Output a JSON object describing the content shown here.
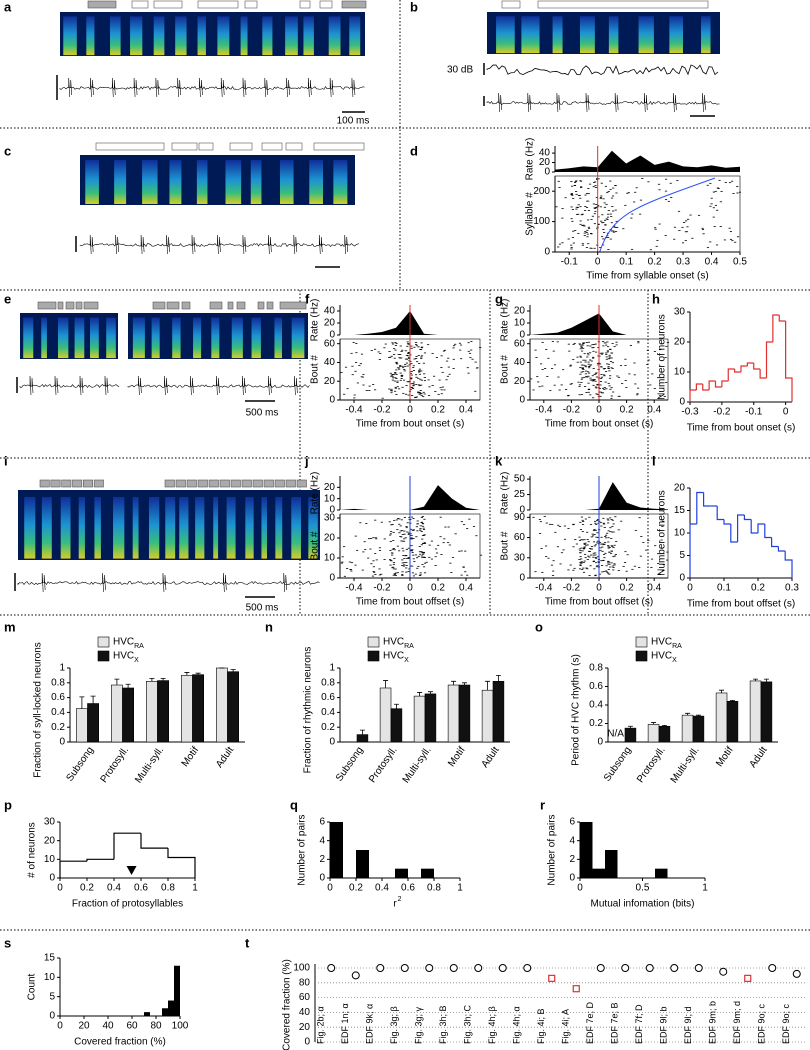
{
  "chart_data": [
    {
      "type": "image",
      "label": "a",
      "annotations": [
        "100 ms"
      ]
    },
    {
      "type": "image",
      "label": "b",
      "annotations": [
        "30 dB"
      ]
    },
    {
      "type": "image",
      "label": "c"
    },
    {
      "type": "raster",
      "label": "d",
      "xlabel": "Time from syllable onset (s)",
      "rate_label": "Rate (Hz)",
      "raster_label": "Syllable #",
      "xlim": [
        -0.15,
        0.5
      ],
      "xticks": [
        -0.1,
        0,
        0.1,
        0.2,
        0.3,
        0.4,
        0.5
      ],
      "rate_ylim": [
        0,
        55
      ],
      "rate_yticks": [
        0,
        20,
        40
      ],
      "raster_ylim": [
        0,
        250
      ],
      "raster_yticks": [
        0,
        100,
        200
      ],
      "rate_x": [
        -0.15,
        -0.1,
        -0.05,
        0,
        0.05,
        0.1,
        0.15,
        0.2,
        0.25,
        0.3,
        0.35,
        0.4,
        0.45,
        0.5
      ],
      "rate": [
        5,
        8,
        12,
        10,
        45,
        18,
        35,
        15,
        22,
        12,
        10,
        14,
        9,
        11
      ],
      "marker_color": "#e03030"
    },
    {
      "type": "image",
      "label": "e",
      "annotations": [
        "500 ms"
      ]
    },
    {
      "type": "raster",
      "label": "f",
      "xlabel": "Time from bout onset (s)",
      "rate_label": "Rate (Hz)",
      "raster_label": "Bout #",
      "xlim": [
        -0.5,
        0.5
      ],
      "xticks": [
        -0.4,
        -0.2,
        0,
        0.2,
        0.4
      ],
      "rate_ylim": [
        0,
        50
      ],
      "rate_yticks": [
        0,
        20,
        40
      ],
      "raster_ylim": [
        0,
        65
      ],
      "raster_yticks": [
        0,
        20,
        40,
        60
      ],
      "rate_x": [
        -0.5,
        -0.4,
        -0.3,
        -0.2,
        -0.1,
        0,
        0.1,
        0.2,
        0.3,
        0.4,
        0.5
      ],
      "rate": [
        0,
        0,
        2,
        5,
        12,
        40,
        2,
        0,
        0,
        0,
        0
      ],
      "marker_color": "#e03030"
    },
    {
      "type": "raster",
      "label": "g",
      "xlabel": "Time from bout onset (s)",
      "rate_label": "Rate (Hz)",
      "raster_label": "Bout #",
      "xlim": [
        -0.5,
        0.5
      ],
      "xticks": [
        -0.4,
        -0.2,
        0,
        0.2,
        0.4
      ],
      "rate_ylim": [
        0,
        25
      ],
      "rate_yticks": [
        0,
        10,
        20
      ],
      "raster_ylim": [
        0,
        65
      ],
      "raster_yticks": [
        0,
        20,
        40,
        60
      ],
      "rate_x": [
        -0.5,
        -0.4,
        -0.3,
        -0.2,
        -0.1,
        0,
        0.1,
        0.2,
        0.3,
        0.4,
        0.5
      ],
      "rate": [
        0,
        1,
        2,
        6,
        12,
        18,
        3,
        0,
        0,
        0,
        0
      ],
      "marker_color": "#e03030"
    },
    {
      "type": "histogram",
      "label": "h",
      "style": "step",
      "color": "#e03030",
      "xlabel": "Time from bout onset (s)",
      "ylabel": "Number of neurons",
      "bins": [
        -0.3,
        -0.28,
        -0.26,
        -0.24,
        -0.22,
        -0.2,
        -0.18,
        -0.16,
        -0.14,
        -0.12,
        -0.1,
        -0.08,
        -0.06,
        -0.04,
        -0.02,
        0,
        0.02
      ],
      "counts": [
        4,
        6,
        4,
        7,
        5,
        7,
        11,
        10,
        12,
        13,
        11,
        8,
        20,
        29,
        27,
        8
      ],
      "xlim": [
        -0.3,
        0.02
      ],
      "xticks": [
        -0.3,
        -0.2,
        -0.1,
        0
      ],
      "ylim": [
        0,
        30
      ],
      "yticks": [
        0,
        10,
        20,
        30
      ]
    },
    {
      "type": "image",
      "label": "i",
      "annotations": [
        "500 ms"
      ]
    },
    {
      "type": "raster",
      "label": "j",
      "xlabel": "Time from bout offset (s)",
      "rate_label": "Rate (Hz)",
      "raster_label": "Bout #",
      "xlim": [
        -0.5,
        0.5
      ],
      "xticks": [
        -0.4,
        -0.2,
        0,
        0.2,
        0.4
      ],
      "rate_ylim": [
        0,
        30
      ],
      "rate_yticks": [
        0,
        10,
        20
      ],
      "raster_ylim": [
        0,
        32
      ],
      "raster_yticks": [
        0,
        10,
        20,
        30
      ],
      "rate_x": [
        -0.5,
        -0.4,
        -0.3,
        -0.2,
        -0.1,
        0,
        0.1,
        0.2,
        0.3,
        0.4,
        0.5
      ],
      "rate": [
        0,
        1,
        0,
        0,
        0,
        0,
        3,
        22,
        10,
        2,
        0
      ],
      "marker_color": "#2040e0"
    },
    {
      "type": "raster",
      "label": "k",
      "xlabel": "Time from bout offset (s)",
      "rate_label": "Rate (Hz)",
      "raster_label": "Bout #",
      "xlim": [
        -0.5,
        0.5
      ],
      "xticks": [
        -0.4,
        -0.2,
        0,
        0.2,
        0.4
      ],
      "rate_ylim": [
        0,
        55
      ],
      "rate_yticks": [
        0,
        25,
        50
      ],
      "raster_ylim": [
        0,
        95
      ],
      "raster_yticks": [
        0,
        30,
        60,
        90
      ],
      "rate_x": [
        -0.5,
        -0.4,
        -0.3,
        -0.2,
        -0.1,
        0,
        0.1,
        0.2,
        0.3,
        0.4,
        0.5
      ],
      "rate": [
        0,
        0,
        0,
        0,
        0,
        2,
        45,
        12,
        4,
        2,
        1
      ],
      "marker_color": "#2040e0"
    },
    {
      "type": "histogram",
      "label": "l",
      "style": "step",
      "color": "#2040e0",
      "xlabel": "Time from bout offset (s)",
      "ylabel": "Number of neurons",
      "bins": [
        0,
        0.02,
        0.04,
        0.06,
        0.08,
        0.1,
        0.12,
        0.14,
        0.16,
        0.18,
        0.2,
        0.22,
        0.24,
        0.26,
        0.28,
        0.3
      ],
      "counts": [
        12,
        19,
        16,
        16,
        13,
        12,
        8,
        14,
        13,
        10,
        12,
        9,
        7,
        6,
        4
      ],
      "xlim": [
        0,
        0.3
      ],
      "xticks": [
        0,
        0.1,
        0.2,
        0.3
      ],
      "ylim": [
        0,
        20
      ],
      "yticks": [
        0,
        5,
        10,
        15,
        20
      ]
    },
    {
      "type": "bar",
      "label": "m",
      "ylabel": "Fraction of syll-locked neurons",
      "categories": [
        "Subsong",
        "Protosyll.",
        "Multi-syll.",
        "Motif",
        "Adult"
      ],
      "series": [
        {
          "name": "HVC",
          "sub": "RA",
          "color": "#e4e4e4",
          "values": [
            0.45,
            0.77,
            0.82,
            0.9,
            1.0
          ],
          "errors": [
            0.16,
            0.08,
            0.04,
            0.04,
            0
          ]
        },
        {
          "name": "HVC",
          "sub": "X",
          "color": "#111111",
          "values": [
            0.52,
            0.73,
            0.83,
            0.91,
            0.95
          ],
          "errors": [
            0.1,
            0.05,
            0.03,
            0.02,
            0.03
          ]
        }
      ],
      "ylim": [
        0,
        1
      ],
      "yticks": [
        0,
        0.2,
        0.4,
        0.6,
        0.8,
        1
      ]
    },
    {
      "type": "bar",
      "label": "n",
      "ylabel": "Fraction of rhythmic neurons",
      "categories": [
        "Subsong",
        "Protosyll.",
        "Multi-syll.",
        "Motif",
        "Adult"
      ],
      "series": [
        {
          "name": "HVC",
          "sub": "RA",
          "color": "#e4e4e4",
          "values": [
            0,
            0.73,
            0.62,
            0.77,
            0.7
          ],
          "errors": [
            0,
            0.1,
            0.05,
            0.05,
            0.12
          ]
        },
        {
          "name": "HVC",
          "sub": "X",
          "color": "#111111",
          "values": [
            0.1,
            0.45,
            0.65,
            0.77,
            0.82
          ],
          "errors": [
            0.06,
            0.06,
            0.03,
            0.03,
            0.08
          ]
        }
      ],
      "ylim": [
        0,
        1
      ],
      "yticks": [
        0,
        0.2,
        0.4,
        0.6,
        0.8,
        1
      ]
    },
    {
      "type": "bar",
      "label": "o",
      "ylabel": "Period of HVC rhythm (s)",
      "missing_label": "N/A",
      "categories": [
        "Subsong",
        "Protosyll.",
        "Multi-syll.",
        "Motif",
        "Adult"
      ],
      "series": [
        {
          "name": "HVC",
          "sub": "RA",
          "color": "#e4e4e4",
          "values": [
            null,
            0.19,
            0.29,
            0.53,
            0.66
          ],
          "errors": [
            null,
            0.02,
            0.02,
            0.03,
            0.02
          ]
        },
        {
          "name": "HVC",
          "sub": "X",
          "color": "#111111",
          "values": [
            0.15,
            0.17,
            0.28,
            0.44,
            0.65
          ],
          "errors": [
            0.02,
            0.01,
            0.01,
            0.01,
            0.03
          ]
        }
      ],
      "ylim": [
        0,
        0.8
      ],
      "yticks": [
        0,
        0.2,
        0.4,
        0.6,
        0.8
      ]
    },
    {
      "type": "histogram",
      "label": "p",
      "style": "step",
      "color": "#000000",
      "xlabel": "Fraction of protosyllables",
      "ylabel": "# of neurons",
      "bins": [
        0,
        0.2,
        0.4,
        0.6,
        0.8,
        1
      ],
      "counts": [
        9,
        10,
        24,
        16,
        11
      ],
      "marker": 0.53,
      "xlim": [
        0,
        1
      ],
      "xticks": [
        0,
        0.2,
        0.4,
        0.6,
        0.8,
        1
      ],
      "ylim": [
        0,
        30
      ],
      "yticks": [
        0,
        10,
        20,
        30
      ]
    },
    {
      "type": "histogram",
      "label": "q",
      "style": "filled",
      "color": "#000000",
      "xlabel": "r",
      "xlabel_sup": "2",
      "ylabel": "Number of pairs",
      "bins": [
        0,
        0.1,
        0.2,
        0.3,
        0.4,
        0.5,
        0.6,
        0.7,
        0.8
      ],
      "counts": [
        6,
        0,
        3,
        0,
        0,
        1,
        0,
        1
      ],
      "xlim": [
        0,
        1
      ],
      "xticks": [
        0,
        0.2,
        0.4,
        0.6,
        0.8,
        1
      ],
      "ylim": [
        0,
        6
      ],
      "yticks": [
        0,
        2,
        4,
        6
      ]
    },
    {
      "type": "histogram",
      "label": "r",
      "style": "filled",
      "color": "#000000",
      "xlabel": "Mutual infomation (bits)",
      "ylabel": "Number of pairs",
      "bins": [
        0,
        0.1,
        0.2,
        0.3,
        0.4,
        0.5,
        0.6,
        0.7
      ],
      "counts": [
        6,
        1,
        3,
        0,
        0,
        0,
        1
      ],
      "xlim": [
        0,
        1
      ],
      "xticks": [
        0,
        0.5,
        1
      ],
      "ylim": [
        0,
        6
      ],
      "yticks": [
        0,
        2,
        4,
        6
      ]
    },
    {
      "type": "histogram",
      "label": "s",
      "style": "filled",
      "color": "#000000",
      "xlabel": "Covered fraction (%)",
      "ylabel": "Count",
      "bins": [
        70,
        75,
        80,
        85,
        90,
        95,
        100
      ],
      "counts": [
        1,
        0,
        0,
        2,
        4,
        13
      ],
      "xlim": [
        0,
        100
      ],
      "xticks": [
        0,
        20,
        40,
        60,
        80,
        100
      ],
      "ylim": [
        0,
        15
      ],
      "yticks": [
        0,
        5,
        10,
        15
      ]
    },
    {
      "type": "scatter",
      "label": "t",
      "ylabel": "Covered fraction (%)",
      "categories": [
        "Fig. 2b; α",
        "EDF 1n; α",
        "EDF 9k; α",
        "Fig. 3g; β",
        "Fig. 3g; γ",
        "Fig. 3h; B",
        "Fig. 3h; C",
        "Fig. 4h; β",
        "Fig. 4h; α",
        "Fig. 4i; B",
        "Fig. 4i; A",
        "EDF 7e; D",
        "EDF 7e; B",
        "EDF 7f; D",
        "EDF 9l; b",
        "EDF 9l; d",
        "EDF 9m; b",
        "EDF 9m; d",
        "EDF 9o; c",
        "EDF 9o; c"
      ],
      "values": [
        100,
        90,
        100,
        100,
        100,
        100,
        100,
        100,
        100,
        86,
        72,
        100,
        100,
        100,
        100,
        100,
        95,
        86,
        100,
        92
      ],
      "color": "#000000",
      "highlight_color": "#e03030",
      "highlighted": [
        9,
        10,
        17
      ],
      "ylim": [
        0,
        100
      ],
      "yticks": [
        0,
        20,
        40,
        60,
        80,
        100
      ],
      "grid": true
    }
  ]
}
